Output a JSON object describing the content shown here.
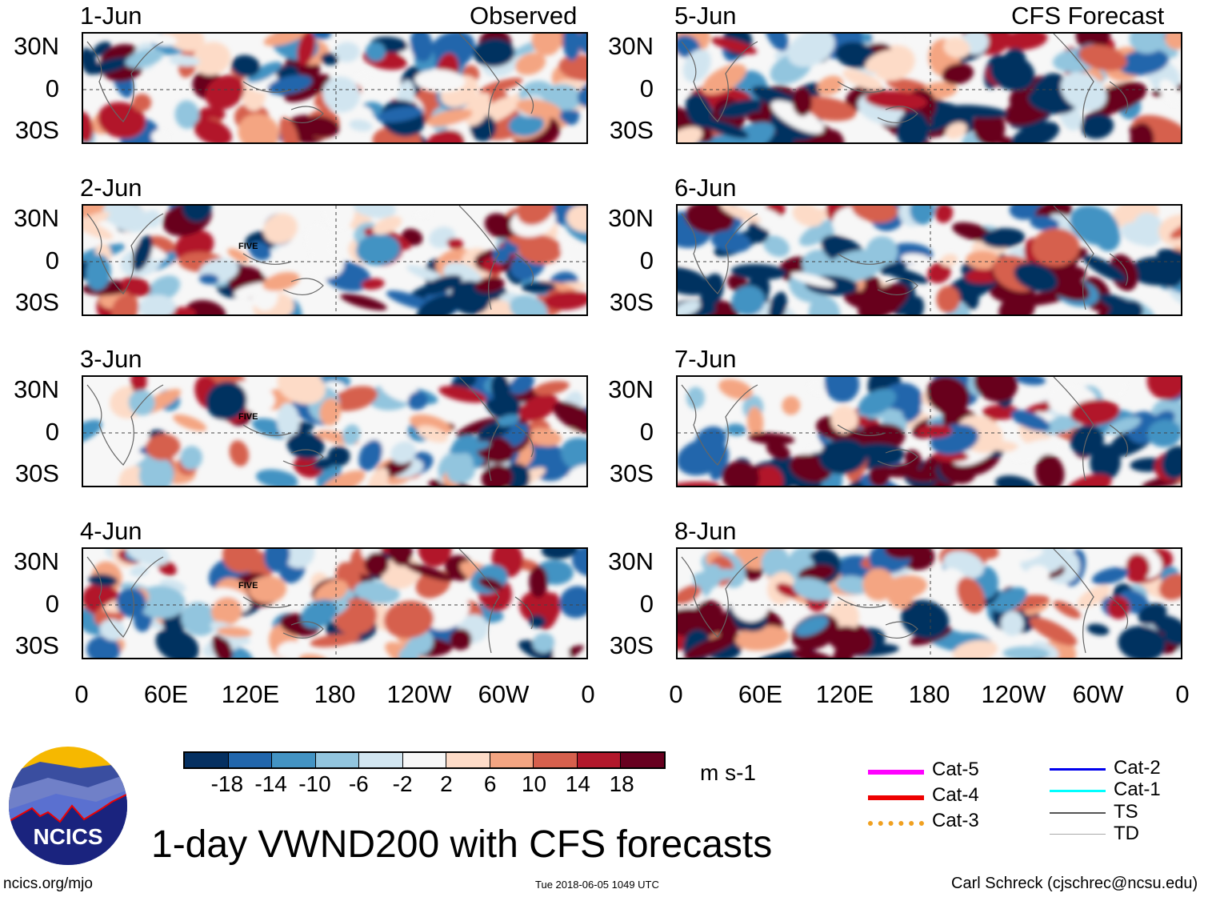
{
  "figure": {
    "title": "1-day VWND200 with CFS forecasts",
    "left_header": "Observed",
    "right_header": "CFS Forecast",
    "url": "ncics.org/mjo",
    "timestamp": "Tue 2018-06-05 1049 UTC",
    "credit": "Carl Schreck (cjschrec@ncsu.edu)",
    "logo_text": "NCICS"
  },
  "panels_left": [
    {
      "date": "1-Jun",
      "storm": ""
    },
    {
      "date": "2-Jun",
      "storm": "FIVE"
    },
    {
      "date": "3-Jun",
      "storm": "FIVE"
    },
    {
      "date": "4-Jun",
      "storm": "FIVE"
    }
  ],
  "panels_right": [
    {
      "date": "5-Jun"
    },
    {
      "date": "6-Jun"
    },
    {
      "date": "7-Jun"
    },
    {
      "date": "8-Jun"
    }
  ],
  "y_ticks": [
    "30N",
    "0",
    "30S"
  ],
  "x_ticks": [
    "0",
    "60E",
    "120E",
    "180",
    "120W",
    "60W",
    "0"
  ],
  "colorbar": {
    "unit": "m s-1",
    "labels": [
      "-18",
      "-14",
      "-10",
      "-6",
      "-2",
      "2",
      "6",
      "10",
      "14",
      "18"
    ],
    "colors": [
      "#053061",
      "#2166ac",
      "#4393c3",
      "#92c5de",
      "#d1e5f0",
      "#f7f7f7",
      "#fddbc7",
      "#f4a582",
      "#d6604d",
      "#b2182b",
      "#67001f"
    ]
  },
  "storm_legend": [
    {
      "label": "Cat-5",
      "color": "#ff00ff"
    },
    {
      "label": "Cat-4",
      "color": "#ee0000"
    },
    {
      "label": "Cat-3",
      "color": "#f0a020"
    },
    {
      "label": "Cat-2",
      "color": "#0000ee"
    },
    {
      "label": "Cat-1",
      "color": "#00ffff"
    },
    {
      "label": "TS",
      "color": "#555555"
    },
    {
      "label": "TD",
      "color": "#aaaaaa"
    }
  ]
}
